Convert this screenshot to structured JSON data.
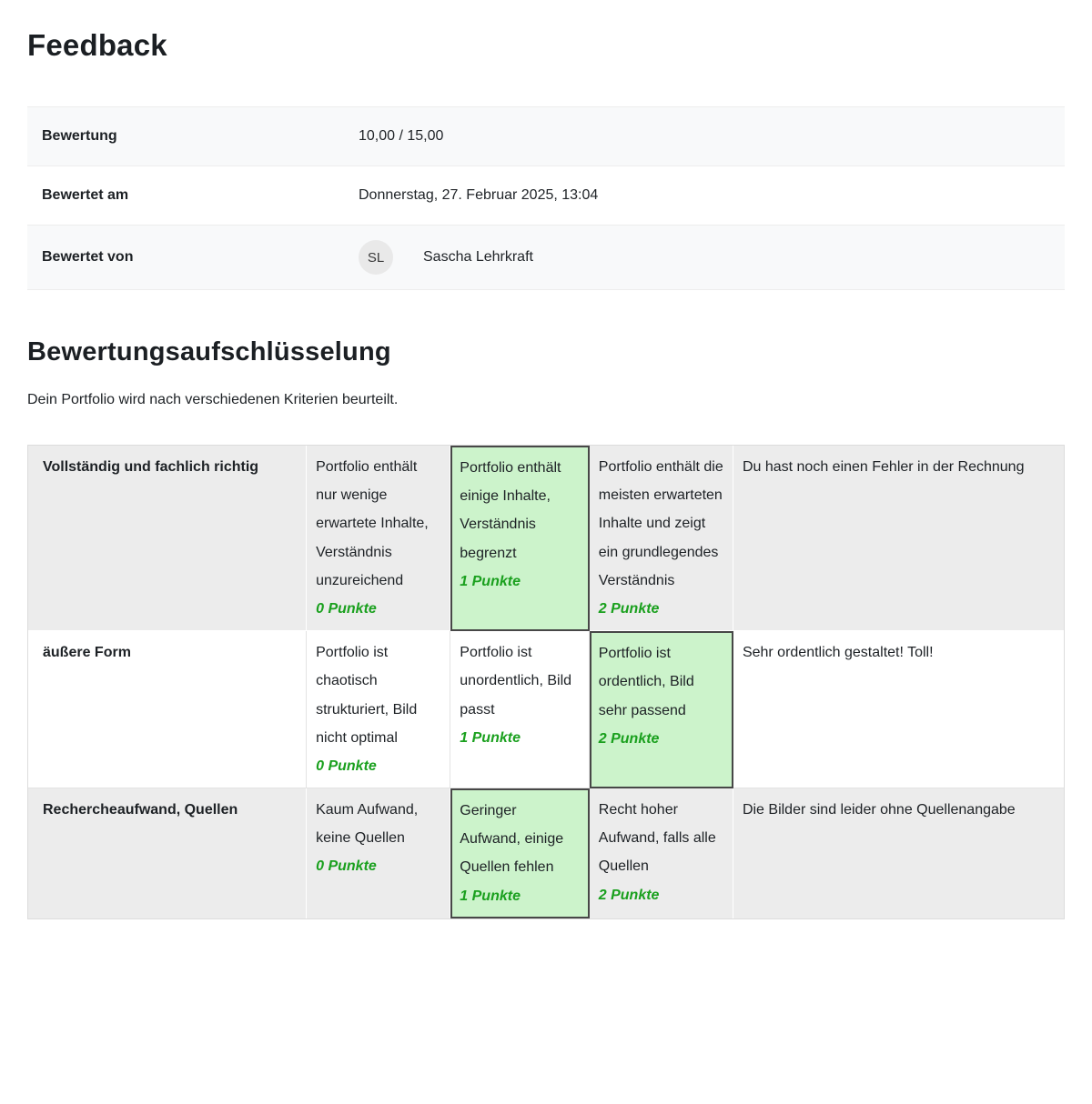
{
  "page": {
    "title": "Feedback",
    "section2_title": "Bewertungsaufschlüsselung",
    "section2_intro": "Dein Portfolio wird nach verschiedenen Kriterien beurteilt."
  },
  "summary": {
    "rows": [
      {
        "label": "Bewertung",
        "value": "10,00 / 15,00"
      },
      {
        "label": "Bewertet am",
        "value": "Donnerstag, 27. Februar 2025, 13:04"
      },
      {
        "label": "Bewertet von",
        "value": "Sascha Lehrkraft",
        "avatar_initials": "SL"
      }
    ]
  },
  "rubric": {
    "criteria": [
      {
        "name": "Vollständig und fachlich richtig",
        "levels": [
          {
            "text": "Portfolio enthält nur wenige erwartete Inhalte, Verständnis unzureichend",
            "points": "0 Punkte",
            "selected": false
          },
          {
            "text": "Portfolio enthält einige Inhalte, Verständnis begrenzt",
            "points": "1 Punkte",
            "selected": true
          },
          {
            "text": "Portfolio enthält die meisten erwarteten Inhalte und zeigt ein grundlegendes Verständnis",
            "points": "2 Punkte",
            "selected": false
          }
        ],
        "remark": "Du hast noch einen Fehler in der Rechnung"
      },
      {
        "name": "äußere Form",
        "levels": [
          {
            "text": "Portfolio ist chaotisch strukturiert, Bild nicht optimal",
            "points": "0 Punkte",
            "selected": false
          },
          {
            "text": "Portfolio ist unordentlich, Bild passt",
            "points": "1 Punkte",
            "selected": false
          },
          {
            "text": "Portfolio ist ordentlich, Bild sehr passend",
            "points": "2 Punkte",
            "selected": true
          }
        ],
        "remark": "Sehr ordentlich gestaltet! Toll!"
      },
      {
        "name": "Rechercheaufwand, Quellen",
        "levels": [
          {
            "text": "Kaum Aufwand, keine Quellen",
            "points": "0 Punkte",
            "selected": false
          },
          {
            "text": "Geringer Aufwand, einige Quellen fehlen",
            "points": "1 Punkte",
            "selected": true
          },
          {
            "text": "Recht hoher Aufwand, falls alle Quellen",
            "points": "2 Punkte",
            "selected": false
          }
        ],
        "remark": "Die Bilder sind leider ohne Quellenangabe"
      }
    ]
  },
  "colors": {
    "selected_level_bg": "#ccf3cb",
    "selected_level_border": "#474747",
    "points_green": "#1aa01e",
    "shaded_row": "#ececec",
    "summary_shaded_row": "#f8f9fa"
  }
}
